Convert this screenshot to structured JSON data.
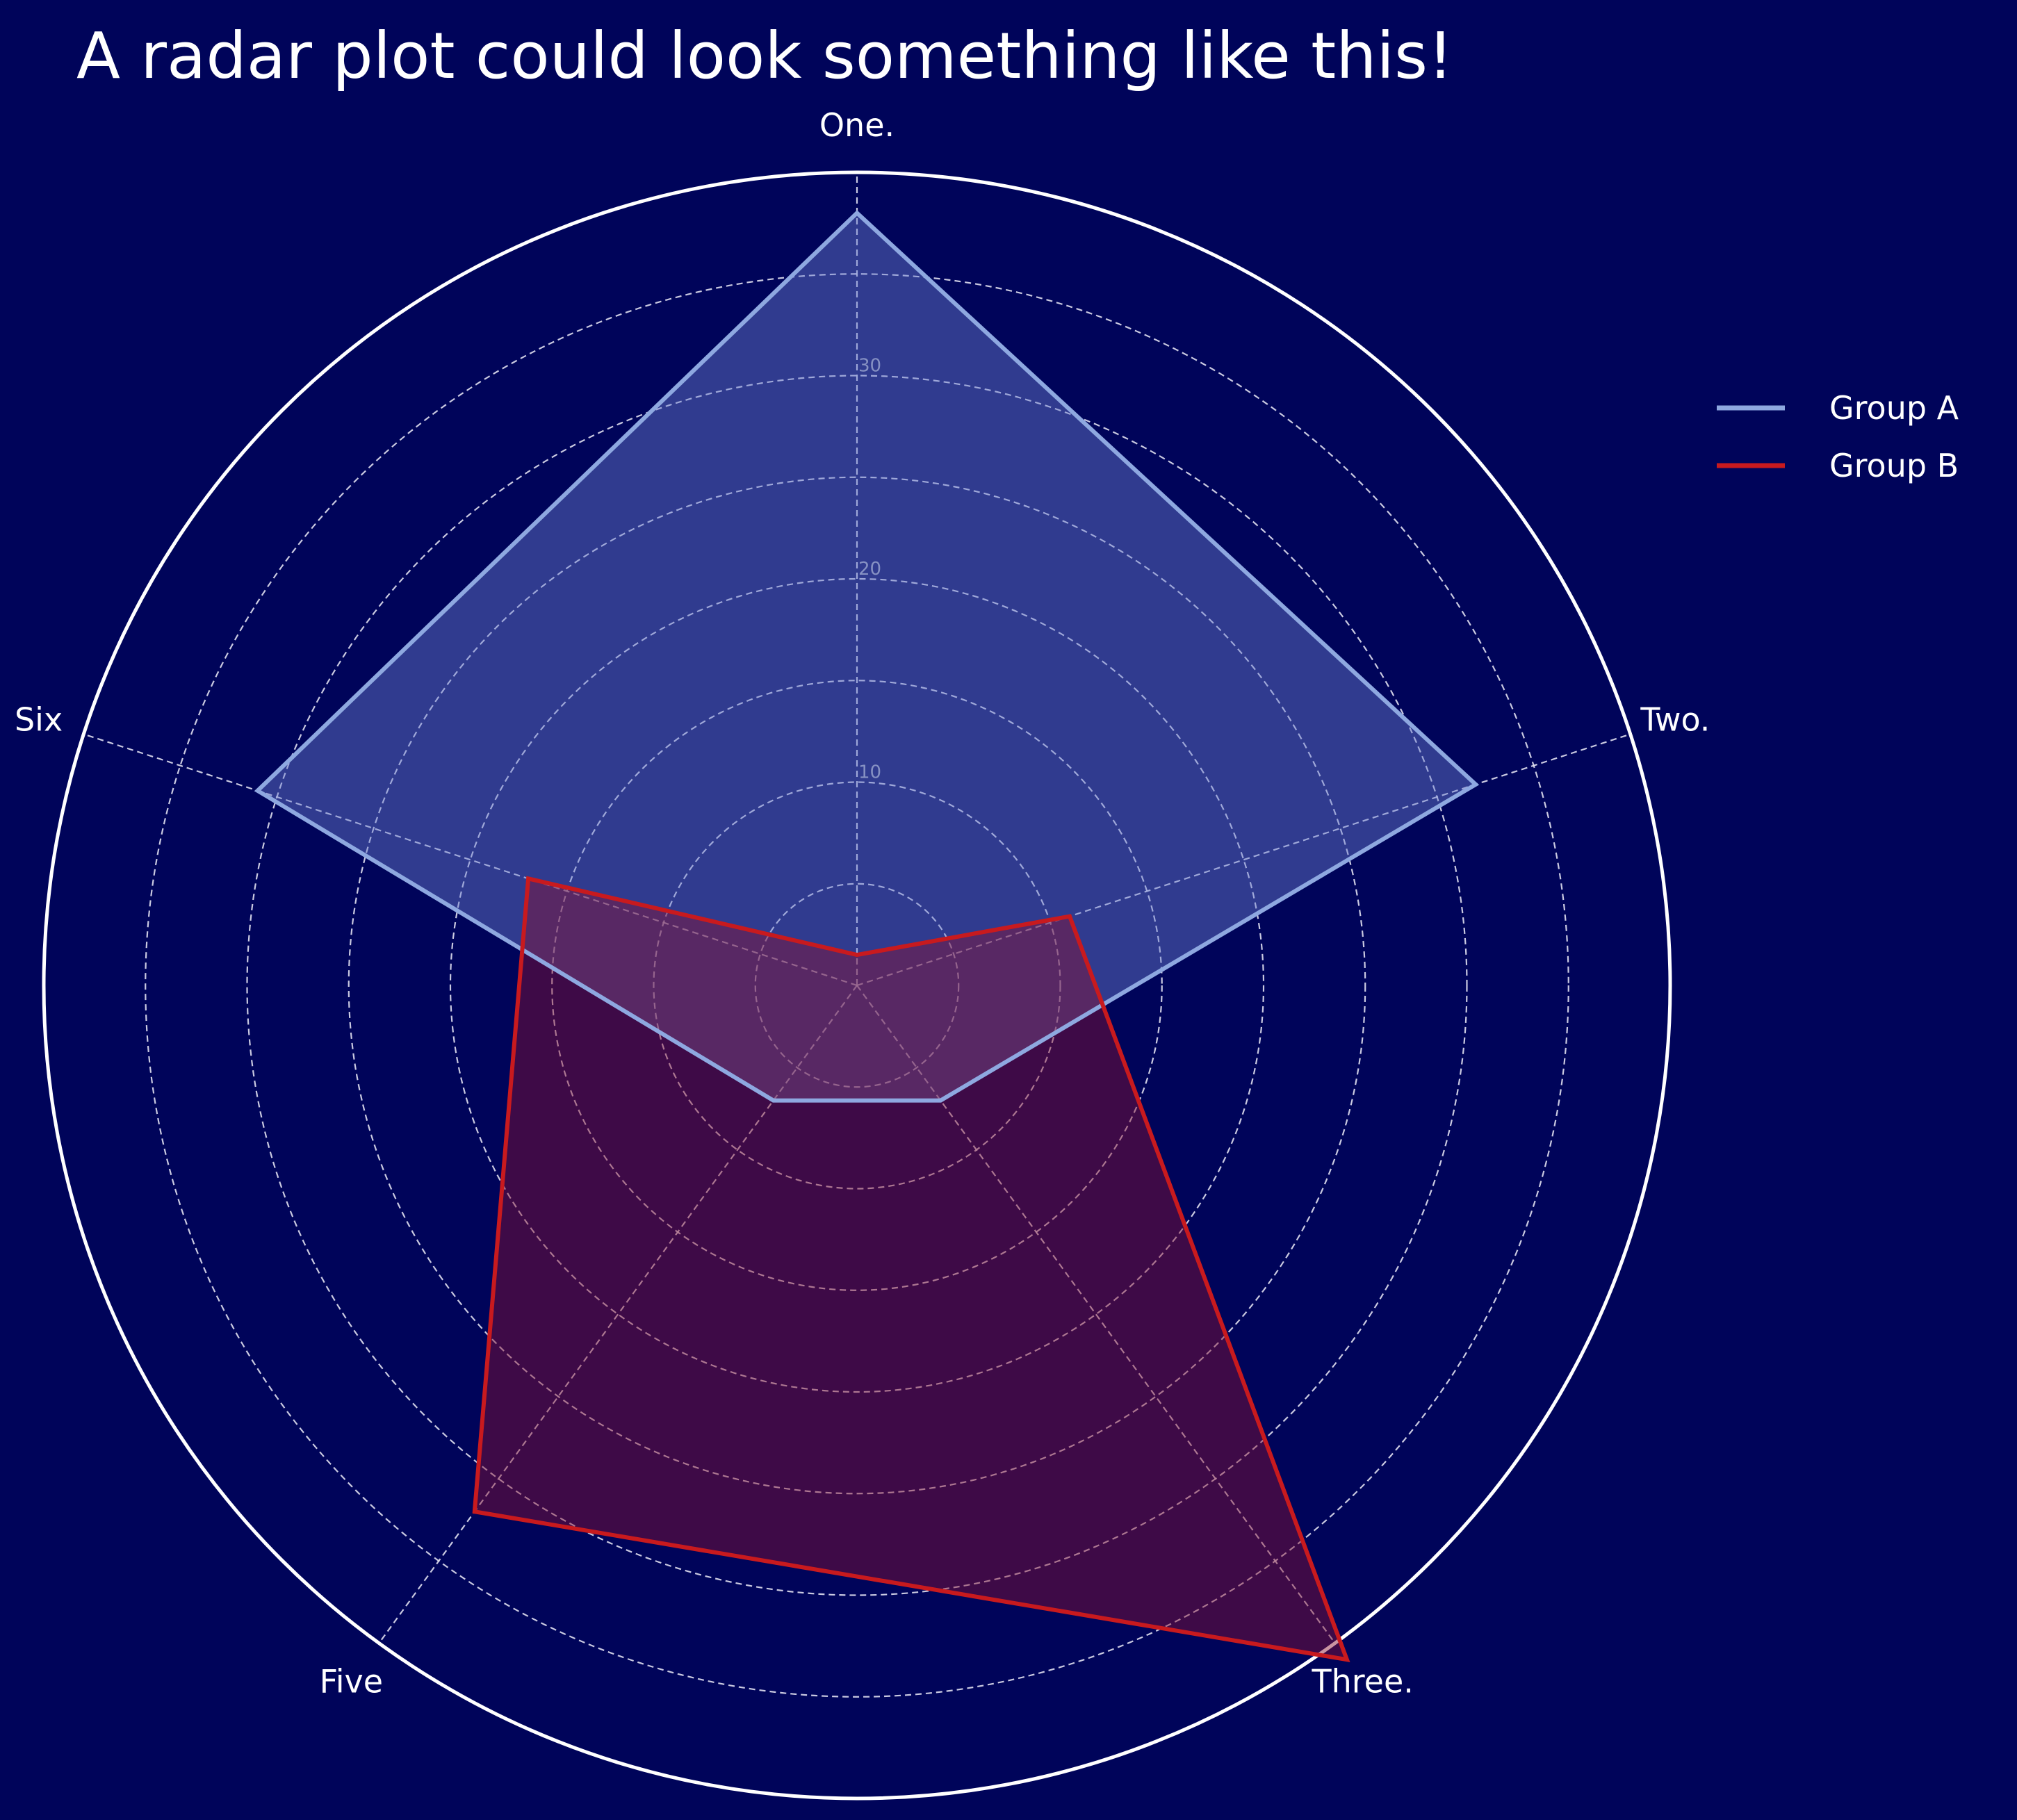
{
  "chart_data": {
    "type": "radar",
    "title": "A radar plot could look something like this!",
    "categories": [
      "One.",
      "Two.",
      "Three.",
      "Five",
      "Six"
    ],
    "series": [
      {
        "name": "Group A",
        "values": [
          38,
          32,
          7,
          7,
          31
        ],
        "color": "#8ea8e0",
        "fill": "#6b7fd0"
      },
      {
        "name": "Group B",
        "values": [
          1.5,
          11,
          41,
          32,
          17
        ],
        "color": "#c81a1e",
        "fill": "#8a1230"
      }
    ],
    "rticks": [
      10,
      20,
      30
    ],
    "rlim": [
      0,
      40
    ],
    "grid": true,
    "legend": "right",
    "colors": {
      "background": "#00045a",
      "grid": "#e0e0f0",
      "outer_ring": "#ffffff",
      "text": "#ffffff"
    }
  }
}
